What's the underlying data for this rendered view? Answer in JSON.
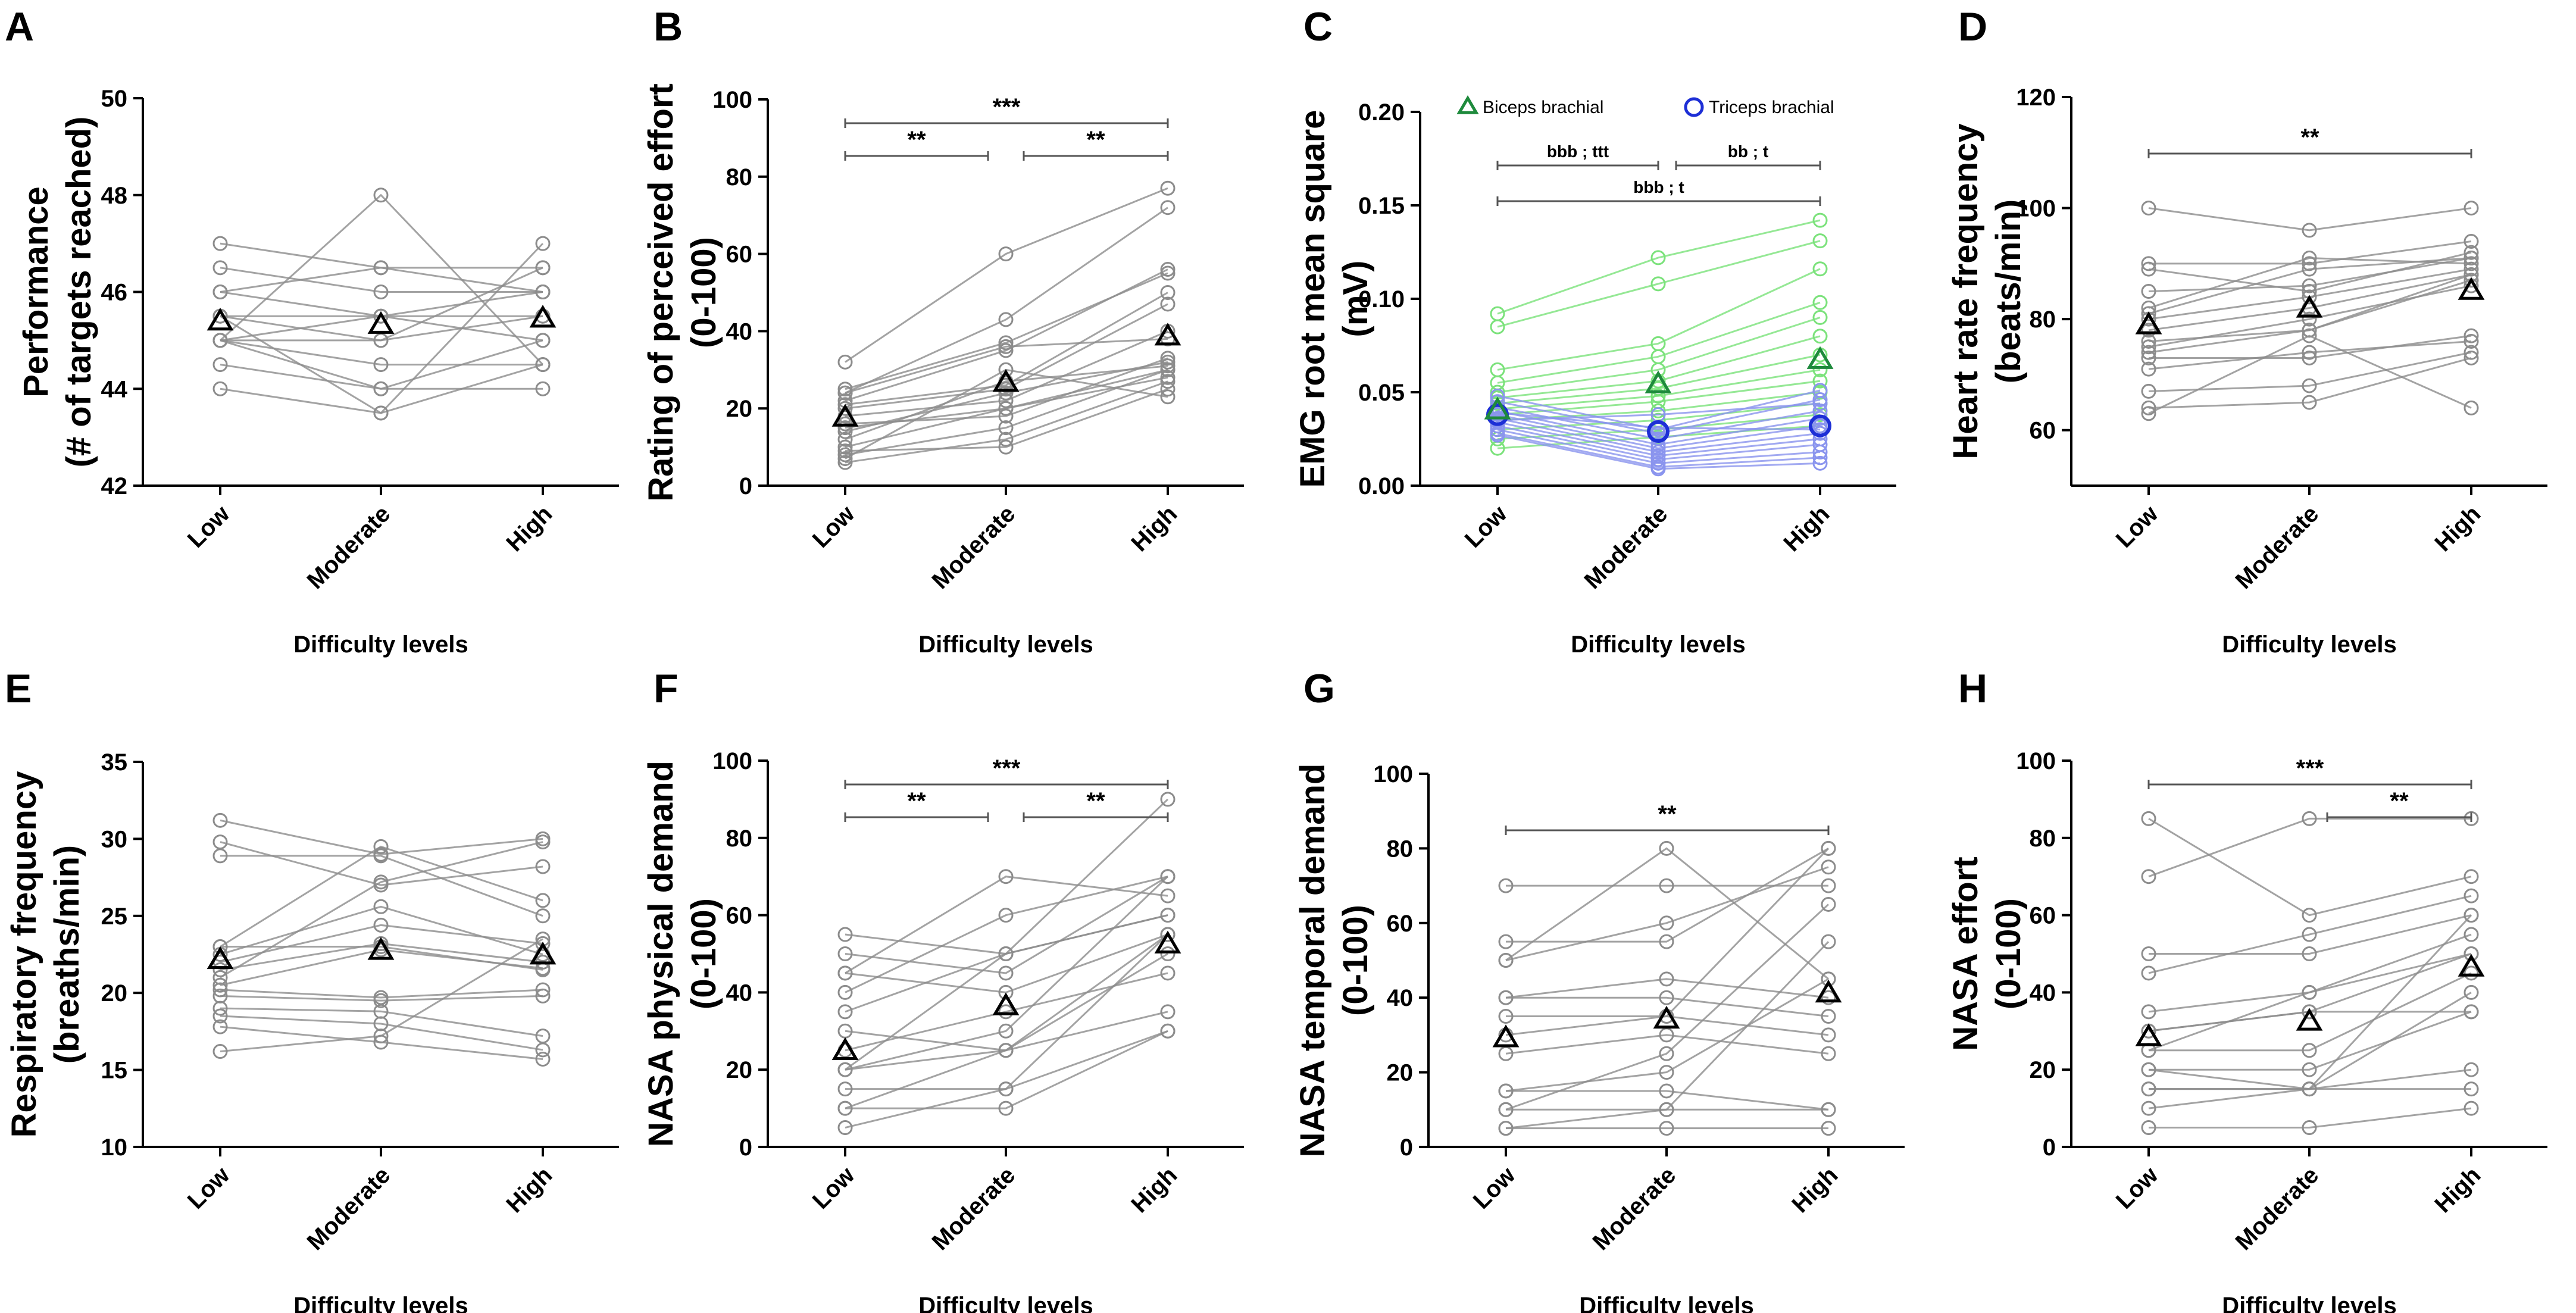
{
  "figure": {
    "x_axis_title": "Difficulty levels"
  },
  "chart_data": [
    {
      "panel": "A",
      "type": "line",
      "ylabel_lines": [
        "Performance",
        "(# of targets reached)"
      ],
      "ylim": [
        42,
        50
      ],
      "yticks": [
        42,
        44,
        46,
        48,
        50
      ],
      "categories": [
        "Low",
        "Moderate",
        "High"
      ],
      "xlabel": "Difficulty levels",
      "subjects": [
        [
          47,
          46.5,
          46
        ],
        [
          46.5,
          46,
          46
        ],
        [
          46,
          46.5,
          46.5
        ],
        [
          46,
          45.5,
          46
        ],
        [
          45.5,
          45,
          45.5
        ],
        [
          45.5,
          45.5,
          45.5
        ],
        [
          45,
          45.5,
          45
        ],
        [
          45,
          44.5,
          44.5
        ],
        [
          45,
          44,
          44
        ],
        [
          44.5,
          44,
          45
        ],
        [
          44,
          43.5,
          44.5
        ],
        [
          45,
          48,
          44.5
        ],
        [
          45.5,
          43.5,
          47
        ],
        [
          45,
          45,
          46.5
        ]
      ],
      "mean": [
        45.38,
        45.31,
        45.44
      ],
      "significance": []
    },
    {
      "panel": "B",
      "type": "line",
      "ylabel_lines": [
        "Rating of perceived effort",
        "(0-100)"
      ],
      "ylim": [
        0,
        100
      ],
      "yticks": [
        0,
        20,
        40,
        60,
        80,
        100
      ],
      "categories": [
        "Low",
        "Moderate",
        "High"
      ],
      "xlabel": "Difficulty levels",
      "subjects": [
        [
          32,
          60,
          77
        ],
        [
          25,
          37,
          55
        ],
        [
          24,
          43,
          72
        ],
        [
          22,
          35,
          56
        ],
        [
          21,
          26,
          50
        ],
        [
          20,
          25,
          47
        ],
        [
          18,
          22,
          40
        ],
        [
          16,
          18,
          33
        ],
        [
          15,
          20,
          30
        ],
        [
          14,
          24,
          32
        ],
        [
          12,
          27,
          31
        ],
        [
          10,
          20,
          28
        ],
        [
          9,
          10,
          25
        ],
        [
          8,
          15,
          30
        ],
        [
          7,
          30,
          23
        ],
        [
          6,
          12,
          27
        ],
        [
          24,
          36,
          38
        ]
      ],
      "mean": [
        17.5,
        26.5,
        38.5
      ],
      "significance": [
        {
          "from": 0,
          "to": 2,
          "label": "***",
          "level": 2
        },
        {
          "from": 0,
          "to": 1,
          "label": "**",
          "level": 1
        },
        {
          "from": 1,
          "to": 2,
          "label": "**",
          "level": 1
        }
      ]
    },
    {
      "panel": "C",
      "type": "line",
      "ylabel_lines": [
        "EMG root mean square",
        "(mV)"
      ],
      "ylim": [
        0,
        0.2
      ],
      "yticks": [
        "0.00",
        "0.05",
        "0.10",
        "0.15",
        "0.20"
      ],
      "categories": [
        "Low",
        "Moderate",
        "High"
      ],
      "xlabel": "Difficulty levels",
      "legend": [
        {
          "label": "Biceps brachial",
          "marker": "triangle",
          "color": "#1e8a3c"
        },
        {
          "label": "Triceps brachial",
          "marker": "circle",
          "color": "#1d2fd6"
        }
      ],
      "series": [
        {
          "name": "Biceps brachial",
          "color": "#7be27b",
          "subjects": [
            [
              0.092,
              0.122,
              0.142
            ],
            [
              0.085,
              0.108,
              0.131
            ],
            [
              0.062,
              0.076,
              0.116
            ],
            [
              0.055,
              0.069,
              0.098
            ],
            [
              0.05,
              0.062,
              0.09
            ],
            [
              0.047,
              0.056,
              0.08
            ],
            [
              0.044,
              0.052,
              0.07
            ],
            [
              0.041,
              0.048,
              0.062
            ],
            [
              0.038,
              0.045,
              0.056
            ],
            [
              0.035,
              0.04,
              0.05
            ],
            [
              0.03,
              0.035,
              0.044
            ],
            [
              0.025,
              0.03,
              0.038
            ],
            [
              0.02,
              0.026,
              0.032
            ]
          ],
          "mean": [
            0.04,
            0.054,
            0.067
          ]
        },
        {
          "name": "Triceps brachial",
          "color": "#8a94ee",
          "subjects": [
            [
              0.048,
              0.03,
              0.051
            ],
            [
              0.045,
              0.028,
              0.046
            ],
            [
              0.042,
              0.025,
              0.04
            ],
            [
              0.04,
              0.022,
              0.036
            ],
            [
              0.038,
              0.02,
              0.032
            ],
            [
              0.036,
              0.018,
              0.028
            ],
            [
              0.034,
              0.016,
              0.025
            ],
            [
              0.032,
              0.014,
              0.022
            ],
            [
              0.03,
              0.012,
              0.018
            ],
            [
              0.028,
              0.01,
              0.015
            ],
            [
              0.027,
              0.009,
              0.012
            ],
            [
              0.035,
              0.038,
              0.044
            ],
            [
              0.039,
              0.031,
              0.03
            ]
          ],
          "mean": [
            0.038,
            0.029,
            0.032
          ]
        }
      ],
      "significance": [
        {
          "from": 0,
          "to": 2,
          "label": "bbb ; t",
          "level": 1
        },
        {
          "from": 0,
          "to": 1,
          "label": "bbb ; ttt",
          "level": 2
        },
        {
          "from": 1,
          "to": 2,
          "label": "bb ; t",
          "level": 2
        }
      ]
    },
    {
      "panel": "D",
      "type": "line",
      "ylabel_lines": [
        "Heart rate frequency",
        "(beats/min)"
      ],
      "ylim": [
        50,
        120
      ],
      "yticks": [
        60,
        80,
        100,
        120
      ],
      "categories": [
        "Low",
        "Moderate",
        "High"
      ],
      "xlabel": "Difficulty levels",
      "subjects": [
        [
          100,
          96,
          100
        ],
        [
          90,
          90,
          94
        ],
        [
          89,
          85,
          92
        ],
        [
          85,
          86,
          91
        ],
        [
          82,
          91,
          90
        ],
        [
          80,
          84,
          89
        ],
        [
          78,
          82,
          88
        ],
        [
          76,
          78,
          87
        ],
        [
          75,
          80,
          86
        ],
        [
          73,
          73,
          77
        ],
        [
          71,
          74,
          76
        ],
        [
          67,
          68,
          74
        ],
        [
          64,
          65,
          73
        ],
        [
          63,
          77,
          64
        ],
        [
          81,
          89,
          91
        ],
        [
          74,
          78,
          88
        ]
      ],
      "mean": [
        78.8,
        81.8,
        85.0
      ],
      "significance": [
        {
          "from": 0,
          "to": 2,
          "label": "**",
          "level": 1
        }
      ]
    },
    {
      "panel": "E",
      "type": "line",
      "ylabel_lines": [
        "Respiratory frequency",
        "(breaths/min)"
      ],
      "ylim": [
        10,
        35
      ],
      "yticks": [
        10,
        15,
        20,
        25,
        30,
        35
      ],
      "categories": [
        "Low",
        "Moderate",
        "High"
      ],
      "xlabel": "Difficulty levels",
      "subjects": [
        [
          31.2,
          29.0,
          30.0
        ],
        [
          29.8,
          27.0,
          28.2
        ],
        [
          28.9,
          28.9,
          25.0
        ],
        [
          23.0,
          29.5,
          26.0
        ],
        [
          22.5,
          25.6,
          22.5
        ],
        [
          22.0,
          24.4,
          23.2
        ],
        [
          21.5,
          23.2,
          22.0
        ],
        [
          20.5,
          22.8,
          21.6
        ],
        [
          20.2,
          19.7,
          20.2
        ],
        [
          19.8,
          19.5,
          19.8
        ],
        [
          19.0,
          18.8,
          17.2
        ],
        [
          18.5,
          18.0,
          16.3
        ],
        [
          17.8,
          16.8,
          15.7
        ],
        [
          16.2,
          17.2,
          23.5
        ],
        [
          23.0,
          23.0,
          21.5
        ],
        [
          21.0,
          27.2,
          29.8
        ]
      ],
      "mean": [
        22.1,
        22.7,
        22.4
      ],
      "significance": []
    },
    {
      "panel": "F",
      "type": "line",
      "ylabel_lines": [
        "NASA physical demand",
        "(0-100)"
      ],
      "ylim": [
        0,
        100
      ],
      "yticks": [
        0,
        20,
        40,
        60,
        80,
        100
      ],
      "categories": [
        "Low",
        "Moderate",
        "High"
      ],
      "xlabel": "Difficulty levels",
      "subjects": [
        [
          55,
          50,
          90
        ],
        [
          50,
          45,
          70
        ],
        [
          45,
          70,
          65
        ],
        [
          40,
          60,
          70
        ],
        [
          35,
          50,
          60
        ],
        [
          30,
          25,
          55
        ],
        [
          25,
          35,
          45
        ],
        [
          20,
          30,
          70
        ],
        [
          20,
          25,
          50
        ],
        [
          15,
          15,
          55
        ],
        [
          10,
          10,
          30
        ],
        [
          10,
          25,
          35
        ],
        [
          5,
          15,
          30
        ],
        [
          45,
          40,
          55
        ],
        [
          20,
          50,
          60
        ]
      ],
      "mean": [
        24.7,
        36.3,
        52.3
      ],
      "significance": [
        {
          "from": 0,
          "to": 2,
          "label": "***",
          "level": 2
        },
        {
          "from": 0,
          "to": 1,
          "label": "**",
          "level": 1
        },
        {
          "from": 1,
          "to": 2,
          "label": "**",
          "level": 1
        }
      ]
    },
    {
      "panel": "G",
      "type": "line",
      "ylabel_lines": [
        "NASA temporal demand",
        "(0-100)"
      ],
      "ylim": [
        0,
        100
      ],
      "yticks": [
        0,
        20,
        40,
        60,
        80,
        100
      ],
      "categories": [
        "Low",
        "Moderate",
        "High"
      ],
      "xlabel": "Difficulty levels",
      "subjects": [
        [
          70,
          70,
          70
        ],
        [
          55,
          55,
          80
        ],
        [
          50,
          60,
          75
        ],
        [
          50,
          80,
          45
        ],
        [
          40,
          45,
          40
        ],
        [
          40,
          40,
          35
        ],
        [
          30,
          35,
          30
        ],
        [
          25,
          30,
          25
        ],
        [
          15,
          20,
          45
        ],
        [
          15,
          15,
          10
        ],
        [
          10,
          25,
          65
        ],
        [
          10,
          10,
          55
        ],
        [
          5,
          5,
          5
        ],
        [
          5,
          10,
          10
        ],
        [
          35,
          35,
          80
        ]
      ],
      "mean": [
        29.0,
        34.0,
        41.0
      ],
      "significance": [
        {
          "from": 0,
          "to": 2,
          "label": "**",
          "level": 1
        }
      ]
    },
    {
      "panel": "H",
      "type": "line",
      "ylabel_lines": [
        "NASA effort",
        "(0-100)"
      ],
      "ylim": [
        0,
        100
      ],
      "yticks": [
        0,
        20,
        40,
        60,
        80,
        100
      ],
      "categories": [
        "Low",
        "Moderate",
        "High"
      ],
      "xlabel": "Difficulty levels",
      "subjects": [
        [
          85,
          60,
          70
        ],
        [
          70,
          85,
          85
        ],
        [
          50,
          50,
          60
        ],
        [
          45,
          55,
          65
        ],
        [
          35,
          40,
          55
        ],
        [
          30,
          35,
          50
        ],
        [
          25,
          25,
          45
        ],
        [
          20,
          15,
          40
        ],
        [
          20,
          20,
          35
        ],
        [
          15,
          15,
          60
        ],
        [
          15,
          15,
          20
        ],
        [
          10,
          15,
          15
        ],
        [
          5,
          5,
          10
        ],
        [
          30,
          35,
          35
        ],
        [
          25,
          40,
          50
        ]
      ],
      "mean": [
        28.3,
        32.3,
        46.3
      ],
      "significance": [
        {
          "from": 0,
          "to": 2,
          "label": "***",
          "level": 2
        },
        {
          "from": 1,
          "to": 2,
          "label": "**",
          "level": 1
        }
      ]
    }
  ]
}
